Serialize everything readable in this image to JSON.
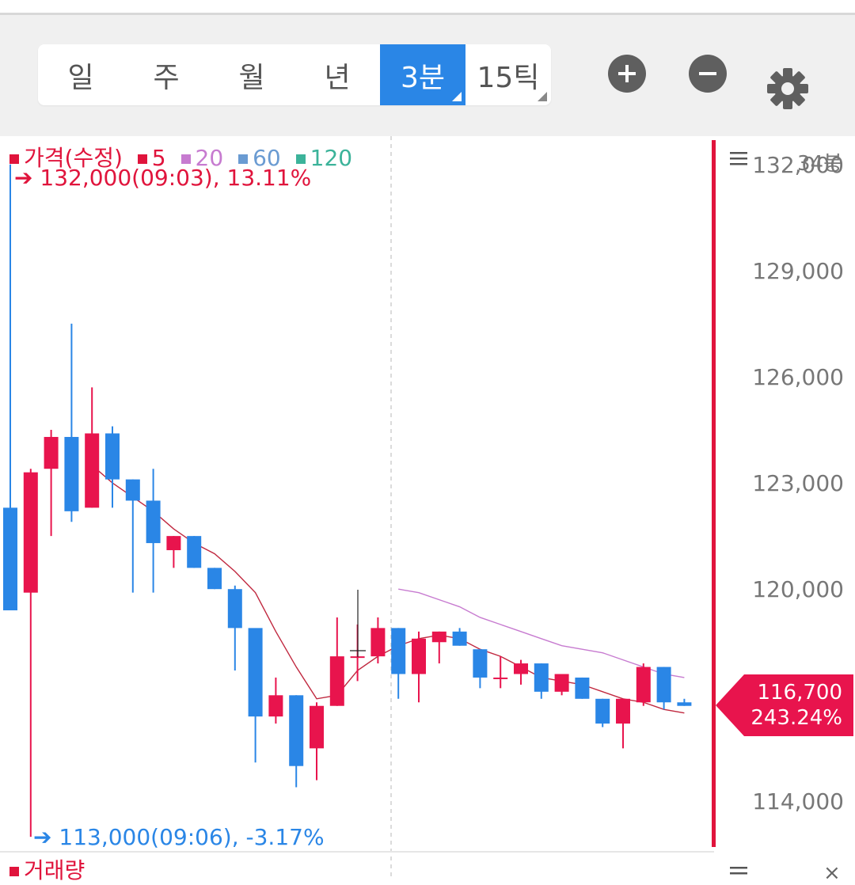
{
  "toolbar": {
    "periods": [
      {
        "label": "일",
        "active": false,
        "has_menu": false
      },
      {
        "label": "주",
        "active": false,
        "has_menu": false
      },
      {
        "label": "월",
        "active": false,
        "has_menu": false
      },
      {
        "label": "년",
        "active": false,
        "has_menu": false
      },
      {
        "label": "3분",
        "active": true,
        "has_menu": true
      },
      {
        "label": "15틱",
        "active": false,
        "has_menu": true
      }
    ],
    "icons": [
      "zoom-in-icon",
      "zoom-out-icon",
      "gear-icon"
    ]
  },
  "legend": {
    "price_label": "가격(수정)",
    "ma": [
      {
        "label": "5",
        "color": "#e0143c"
      },
      {
        "label": "20",
        "color": "#c77bd0"
      },
      {
        "label": "60",
        "color": "#6a9bd2"
      },
      {
        "label": "120",
        "color": "#3cb39a"
      }
    ]
  },
  "bar_count": "34봉",
  "max_marker": {
    "text": "132,000(09:03), 13.11%"
  },
  "min_marker": {
    "text": "113,000(09:06), -3.17%"
  },
  "current_price": {
    "price": "116,700",
    "change": "243.24%"
  },
  "volume_label": "거래량",
  "colors": {
    "up": "#e8144d",
    "down": "#2a86e6",
    "accent": "#2a86e6",
    "ma5": "#c0283f",
    "ma20": "#c77bd0",
    "price_line": "#e0143c"
  },
  "chart_data": {
    "type": "candlestick",
    "ylim": [
      112600,
      132800
    ],
    "yticks": [
      {
        "value": 132000,
        "label": "132,000"
      },
      {
        "value": 129000,
        "label": "129,000"
      },
      {
        "value": 126000,
        "label": "126,000"
      },
      {
        "value": 123000,
        "label": "123,000"
      },
      {
        "value": 120000,
        "label": "120,000"
      },
      {
        "value": 114000,
        "label": "114,000"
      }
    ],
    "candles": [
      {
        "o": 122300,
        "h": 132000,
        "l": 119400,
        "c": 119400
      },
      {
        "o": 119900,
        "h": 123400,
        "l": 113000,
        "c": 123300
      },
      {
        "o": 123400,
        "h": 124500,
        "l": 121500,
        "c": 124300
      },
      {
        "o": 124300,
        "h": 127500,
        "l": 121900,
        "c": 122200
      },
      {
        "o": 122300,
        "h": 125700,
        "l": 122300,
        "c": 124400
      },
      {
        "o": 124400,
        "h": 124600,
        "l": 122300,
        "c": 123100
      },
      {
        "o": 123100,
        "h": 123100,
        "l": 119900,
        "c": 122500
      },
      {
        "o": 122500,
        "h": 123400,
        "l": 119900,
        "c": 121300
      },
      {
        "o": 121100,
        "h": 121500,
        "l": 120600,
        "c": 121500
      },
      {
        "o": 121500,
        "h": 121500,
        "l": 120600,
        "c": 120600
      },
      {
        "o": 120600,
        "h": 120600,
        "l": 120000,
        "c": 120000
      },
      {
        "o": 120000,
        "h": 120100,
        "l": 117700,
        "c": 118900
      },
      {
        "o": 118900,
        "h": 118700,
        "l": 115100,
        "c": 116400
      },
      {
        "o": 116400,
        "h": 117500,
        "l": 116200,
        "c": 117000
      },
      {
        "o": 117000,
        "h": 117000,
        "l": 114400,
        "c": 115000
      },
      {
        "o": 115500,
        "h": 116800,
        "l": 114600,
        "c": 116700
      },
      {
        "o": 116700,
        "h": 119200,
        "l": 116700,
        "c": 118100
      },
      {
        "o": 118100,
        "h": 119000,
        "l": 117400,
        "c": 118100
      },
      {
        "o": 118100,
        "h": 119200,
        "l": 117900,
        "c": 118900
      },
      {
        "o": 118900,
        "h": 118900,
        "l": 116900,
        "c": 117600
      },
      {
        "o": 117600,
        "h": 118800,
        "l": 116800,
        "c": 118600
      },
      {
        "o": 118500,
        "h": 118800,
        "l": 117900,
        "c": 118800
      },
      {
        "o": 118800,
        "h": 118900,
        "l": 118400,
        "c": 118400
      },
      {
        "o": 118300,
        "h": 118300,
        "l": 117200,
        "c": 117500
      },
      {
        "o": 117500,
        "h": 118100,
        "l": 117200,
        "c": 117500
      },
      {
        "o": 117600,
        "h": 118000,
        "l": 117300,
        "c": 117900
      },
      {
        "o": 117900,
        "h": 117900,
        "l": 116900,
        "c": 117100
      },
      {
        "o": 117100,
        "h": 117600,
        "l": 117000,
        "c": 117600
      },
      {
        "o": 117500,
        "h": 117500,
        "l": 116900,
        "c": 116900
      },
      {
        "o": 116900,
        "h": 116900,
        "l": 116100,
        "c": 116200
      },
      {
        "o": 116200,
        "h": 116900,
        "l": 115500,
        "c": 116900
      },
      {
        "o": 116800,
        "h": 117900,
        "l": 116700,
        "c": 117800
      },
      {
        "o": 117800,
        "h": 117800,
        "l": 116600,
        "c": 116800
      },
      {
        "o": 116800,
        "h": 116900,
        "l": 116700,
        "c": 116700
      }
    ],
    "ma5": [
      null,
      null,
      null,
      null,
      123500,
      123000,
      122600,
      122200,
      121700,
      121300,
      121000,
      120500,
      119900,
      118800,
      117800,
      116900,
      117000,
      117700,
      118100,
      118400,
      118600,
      118700,
      118600,
      118300,
      118100,
      117800,
      117500,
      117400,
      117300,
      117100,
      116900,
      116800,
      116600,
      116500
    ],
    "ma20": [
      null,
      null,
      null,
      null,
      null,
      null,
      null,
      null,
      null,
      null,
      null,
      null,
      null,
      null,
      null,
      null,
      null,
      null,
      null,
      120000,
      119900,
      119700,
      119500,
      119200,
      119000,
      118800,
      118600,
      118400,
      118300,
      118200,
      118000,
      117800,
      117600,
      117500
    ]
  }
}
